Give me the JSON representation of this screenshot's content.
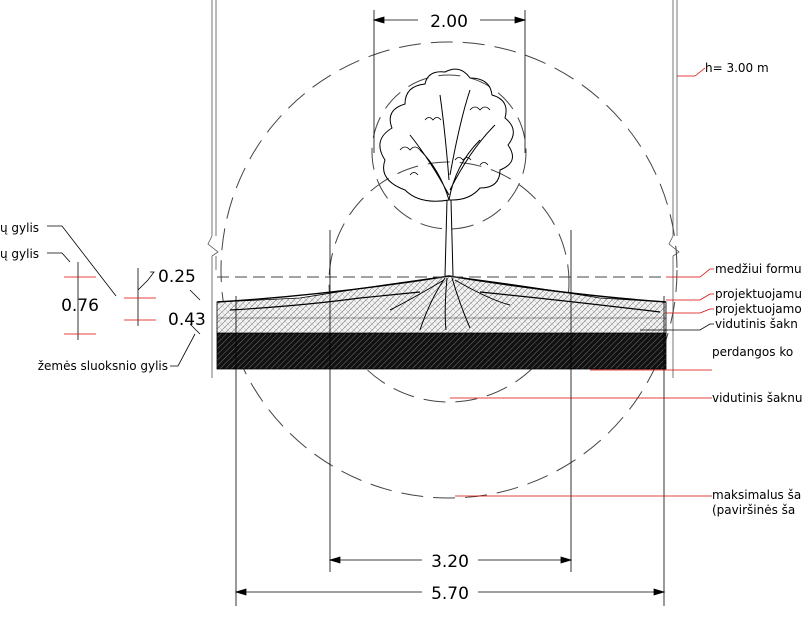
{
  "dimensions": {
    "crown_width": "2.00",
    "height": "h= 3.00 m",
    "inner_span": "3.20",
    "outer_span": "5.70",
    "depth_total": "0.76",
    "depth_top": "0.25",
    "depth_mid": "0.43"
  },
  "left_labels": {
    "label_1": "ų gylis",
    "label_2": "ų gylis",
    "soil_layer_depth": "žemės sluoksnio gylis"
  },
  "right_labels": {
    "tree_formation": "medžiui formu",
    "projected_1": "projektuojamu",
    "projected_2": "projektuojamo",
    "avg_root_1": "vidutinis šakn",
    "slab": "perdangos ko",
    "avg_root_2": "vidutinis šaknu",
    "max_line1": "maksimalus ša",
    "max_line2": "(paviršinės ša"
  }
}
